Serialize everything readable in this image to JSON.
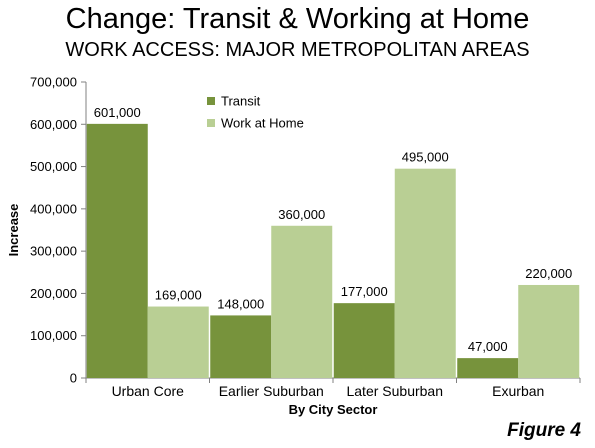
{
  "title": "Change: Transit  & Working at Home",
  "subtitle": "WORK ACCESS: MAJOR METROPOLITAN AREAS",
  "figure_label": "Figure 4",
  "chart_data": {
    "type": "bar",
    "categories": [
      "Urban Core",
      "Earlier Suburban",
      "Later Suburban",
      "Exurban"
    ],
    "series": [
      {
        "name": "Transit",
        "color": "#77933C",
        "values": [
          601000,
          148000,
          177000,
          47000
        ],
        "labels": [
          "601,000",
          "148,000",
          "177,000",
          "47,000"
        ]
      },
      {
        "name": "Work at Home",
        "color": "#B9CF94",
        "values": [
          169000,
          360000,
          495000,
          220000
        ],
        "labels": [
          "169,000",
          "360,000",
          "495,000",
          "220,000"
        ]
      }
    ],
    "xlabel": "By City Sector",
    "ylabel": "Increase",
    "ylim": [
      0,
      700000
    ],
    "yticks": [
      0,
      100000,
      200000,
      300000,
      400000,
      500000,
      600000,
      700000
    ],
    "ytick_labels": [
      "0",
      "100,000",
      "200,000",
      "300,000",
      "400,000",
      "500,000",
      "600,000",
      "700,000"
    ],
    "grid": false,
    "legend_position": "top-center"
  }
}
